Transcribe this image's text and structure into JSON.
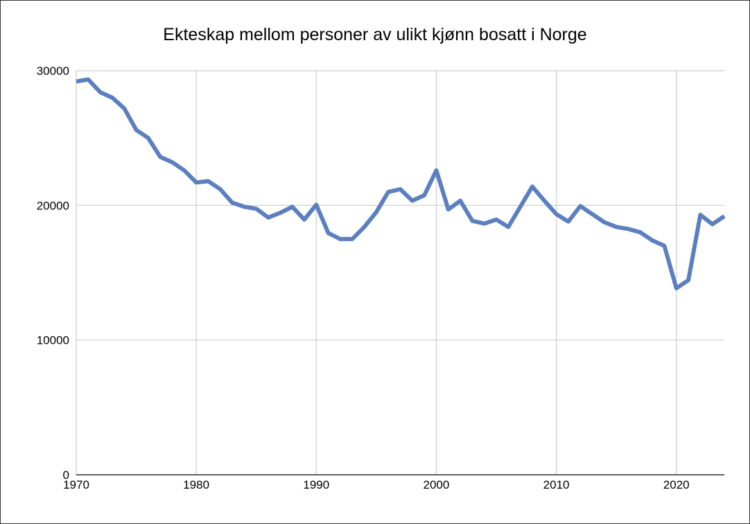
{
  "chart_data": {
    "type": "line",
    "title": "Ekteskap mellom personer av ulikt kjønn bosatt i Norge",
    "xlabel": "",
    "ylabel": "",
    "xlim": [
      1970,
      2024
    ],
    "ylim": [
      0,
      30000
    ],
    "x_ticks": [
      "1970",
      "1980",
      "1990",
      "2000",
      "2010",
      "2020"
    ],
    "y_ticks": [
      "0",
      "10000",
      "20000",
      "30000"
    ],
    "grid": true,
    "legend": "none",
    "series": [
      {
        "color": "#5b7fbf",
        "x": [
          1970,
          1971,
          1972,
          1973,
          1974,
          1975,
          1976,
          1977,
          1978,
          1979,
          1980,
          1981,
          1982,
          1983,
          1984,
          1985,
          1986,
          1987,
          1988,
          1989,
          1990,
          1991,
          1992,
          1993,
          1994,
          1995,
          1996,
          1997,
          1998,
          1999,
          2000,
          2001,
          2002,
          2003,
          2004,
          2005,
          2006,
          2007,
          2008,
          2009,
          2010,
          2011,
          2012,
          2013,
          2014,
          2015,
          2016,
          2017,
          2018,
          2019,
          2020,
          2021,
          2022,
          2023,
          2024
        ],
        "values": [
          29200,
          29350,
          28400,
          28000,
          27200,
          25600,
          25000,
          23600,
          23200,
          22600,
          21700,
          21800,
          21200,
          20200,
          19900,
          19750,
          19100,
          19450,
          19900,
          18950,
          20050,
          17950,
          17500,
          17500,
          18400,
          19500,
          21000,
          21200,
          20350,
          20750,
          22600,
          19700,
          20350,
          18850,
          18650,
          18950,
          18400,
          19900,
          21400,
          20350,
          19350,
          18800,
          19950,
          19350,
          18750,
          18400,
          18250,
          18000,
          17400,
          17000,
          13850,
          14450,
          19300,
          18600,
          19200
        ]
      }
    ]
  },
  "colors": {
    "line": "#5b7fbf",
    "grid": "#cccccc",
    "frame": "#333333",
    "text": "#000000"
  }
}
